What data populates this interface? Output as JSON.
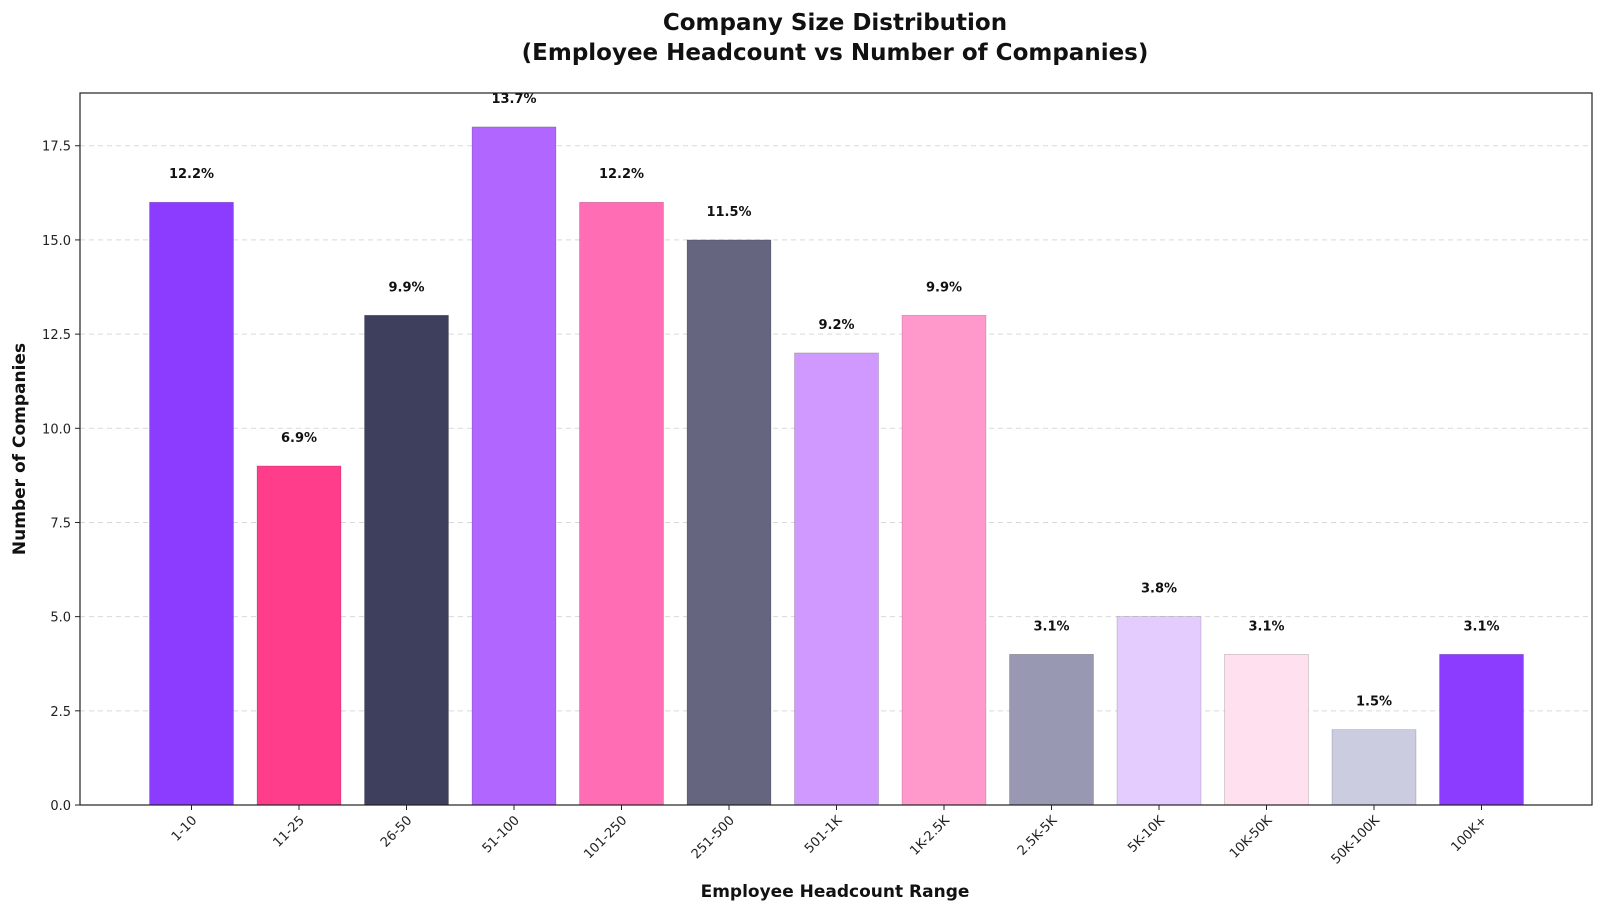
{
  "chart_data": {
    "type": "bar",
    "title": "Company Size Distribution",
    "subtitle": "(Employee Headcount vs Number of Companies)",
    "xlabel": "Employee Headcount Range",
    "ylabel": "Number of Companies",
    "categories": [
      "1-10",
      "11-25",
      "26-50",
      "51-100",
      "101-250",
      "251-500",
      "501-1K",
      "1K-2.5K",
      "2.5K-5K",
      "5K-10K",
      "10K-50K",
      "50K-100K",
      "100K+"
    ],
    "values": [
      16,
      9,
      13,
      18,
      16,
      15,
      12,
      13,
      4,
      5,
      4,
      2,
      4
    ],
    "labels": [
      "12.2%",
      "6.9%",
      "9.9%",
      "13.7%",
      "12.2%",
      "11.5%",
      "9.2%",
      "9.9%",
      "3.1%",
      "3.8%",
      "3.1%",
      "1.5%",
      "3.1%"
    ],
    "colors": [
      "#8c3cff",
      "#ff3d8b",
      "#3d3f5c",
      "#b066ff",
      "#ff6eb4",
      "#65657f",
      "#cf99ff",
      "#ff99cc",
      "#9898b3",
      "#e5ccff",
      "#ffe0ef",
      "#cccce0",
      "#8c3cff"
    ],
    "yticks": [
      "0.0",
      "2.5",
      "5.0",
      "7.5",
      "10.0",
      "12.5",
      "15.0",
      "17.5"
    ],
    "ylim": [
      0,
      18.9
    ],
    "grid": "y-dashed"
  }
}
